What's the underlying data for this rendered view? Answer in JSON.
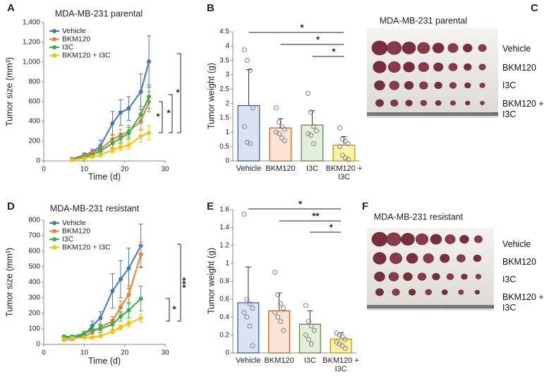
{
  "chart_data": [
    {
      "panel": "A",
      "type": "line",
      "title": "MDA-MB-231 parental",
      "xlabel": "Time (d)",
      "ylabel": "Tumor size (mm³)",
      "x": [
        7,
        10,
        12,
        14,
        17,
        19,
        21,
        24,
        26
      ],
      "series": [
        {
          "name": "Vehicle",
          "color": "#4472c4",
          "values": [
            20,
            60,
            90,
            150,
            380,
            490,
            530,
            700,
            1005
          ],
          "errors": [
            10,
            20,
            30,
            60,
            120,
            130,
            120,
            180,
            260
          ]
        },
        {
          "name": "BKM120",
          "color": "#ed7d31",
          "values": [
            20,
            50,
            80,
            120,
            220,
            260,
            300,
            400,
            600
          ],
          "errors": [
            5,
            15,
            20,
            30,
            50,
            60,
            60,
            80,
            100
          ]
        },
        {
          "name": "I3C",
          "color": "#2fb34a",
          "values": [
            15,
            40,
            60,
            100,
            180,
            230,
            280,
            470,
            650
          ],
          "errors": [
            5,
            10,
            15,
            25,
            50,
            50,
            60,
            80,
            120
          ]
        },
        {
          "name": "BKM120 + I3C",
          "color": "#ffc000",
          "values": [
            10,
            25,
            40,
            60,
            110,
            140,
            160,
            250,
            285
          ],
          "errors": [
            3,
            8,
            10,
            15,
            30,
            30,
            40,
            60,
            70
          ]
        }
      ],
      "xlim": [
        0,
        30
      ],
      "xticks": [
        0,
        10,
        20,
        30
      ],
      "ylim": [
        0,
        1400
      ],
      "yticks": [
        0,
        200,
        400,
        600,
        800,
        {
          "value": 1000,
          "label": "1,000"
        },
        {
          "value": 1200,
          "label": "1,200"
        },
        {
          "value": 1400,
          "label": "1,400"
        }
      ],
      "significance": [
        "*",
        "*",
        "*"
      ]
    },
    {
      "panel": "B",
      "type": "bar",
      "ylabel": "Tumor weight (g)",
      "categories": [
        "Vehicle",
        "BKM120",
        "I3C",
        "BKM120 + I3C"
      ],
      "values": [
        1.93,
        1.15,
        1.25,
        0.55
      ],
      "errors": [
        1.25,
        0.32,
        0.5,
        0.3
      ],
      "colors": [
        "#dae3f3",
        "#fbe3d5",
        "#e2f0d9",
        "#fff2a6"
      ],
      "edge_colors": [
        "#2f5597",
        "#c55a11",
        "#548235",
        "#bf9000"
      ],
      "points": [
        [
          3.87,
          3.5,
          3.15,
          1.85,
          1.2,
          0.65,
          0.6
        ],
        [
          1.85,
          1.35,
          1.2,
          1.1,
          1.0,
          0.95,
          0.8,
          0.7
        ],
        [
          2.35,
          1.7,
          1.2,
          1.05,
          0.95,
          0.9,
          0.6
        ],
        [
          1.15,
          0.75,
          0.7,
          0.6,
          0.5,
          0.2,
          0.1,
          0.05
        ]
      ],
      "ylim": [
        0,
        4.5
      ],
      "yticks": [
        0,
        0.5,
        1,
        1.5,
        2,
        2.5,
        3,
        3.5,
        4,
        4.5
      ],
      "significance": [
        "*",
        "*",
        "*"
      ]
    },
    {
      "panel": "D",
      "type": "line",
      "title": "MDA-MB-231 resistant",
      "xlabel": "Time (d)",
      "ylabel": "Tumor size (mm³)",
      "x": [
        5,
        7,
        10,
        12,
        14,
        17,
        19,
        21,
        24
      ],
      "series": [
        {
          "name": "Vehicle",
          "color": "#4472c4",
          "values": [
            45,
            40,
            60,
            120,
            170,
            345,
            420,
            490,
            635
          ],
          "errors": [
            10,
            10,
            15,
            30,
            40,
            110,
            120,
            130,
            140
          ]
        },
        {
          "name": "BKM120",
          "color": "#ed7d31",
          "values": [
            30,
            35,
            50,
            80,
            110,
            150,
            240,
            320,
            580
          ],
          "errors": [
            5,
            8,
            10,
            15,
            20,
            30,
            40,
            60,
            80
          ]
        },
        {
          "name": "I3C",
          "color": "#2fb34a",
          "values": [
            50,
            50,
            70,
            95,
            100,
            130,
            180,
            220,
            295
          ],
          "errors": [
            10,
            10,
            15,
            20,
            25,
            30,
            30,
            50,
            80
          ]
        },
        {
          "name": "BKM120 + I3C",
          "color": "#ffc000",
          "values": [
            35,
            40,
            45,
            45,
            55,
            85,
            110,
            135,
            170
          ],
          "errors": [
            5,
            8,
            8,
            8,
            10,
            15,
            15,
            20,
            25
          ]
        }
      ],
      "xlim": [
        0,
        30
      ],
      "xticks": [
        0,
        10,
        20,
        30
      ],
      "ylim": [
        0,
        800
      ],
      "yticks": [
        0,
        100,
        200,
        300,
        400,
        500,
        600,
        700,
        800
      ],
      "significance": [
        "*",
        "***"
      ]
    },
    {
      "panel": "E",
      "type": "bar",
      "ylabel": "Tumor weight (g)",
      "categories": [
        "Vehicle",
        "BKM120",
        "I3C",
        "BKM120 + I3C"
      ],
      "values": [
        0.56,
        0.47,
        0.32,
        0.155
      ],
      "errors": [
        0.4,
        0.2,
        0.15,
        0.07
      ],
      "colors": [
        "#dae3f3",
        "#fbe3d5",
        "#e2f0d9",
        "#fff2a6"
      ],
      "edge_colors": [
        "#2f5597",
        "#c55a11",
        "#548235",
        "#bf9000"
      ],
      "points": [
        [
          1.55,
          0.6,
          0.55,
          0.5,
          0.45,
          0.4,
          0.3,
          0.08
        ],
        [
          0.9,
          0.65,
          0.55,
          0.5,
          0.45,
          0.4,
          0.35,
          0.25
        ],
        [
          0.53,
          0.35,
          0.3,
          0.25,
          0.2,
          0.15,
          0.1
        ],
        [
          0.22,
          0.2,
          0.18,
          0.15,
          0.12,
          0.1,
          0.08,
          0.05
        ]
      ],
      "ylim": [
        0,
        1.6
      ],
      "yticks": [
        0,
        0.2,
        0.4,
        0.6,
        0.8,
        1,
        1.2,
        1.4,
        1.6
      ],
      "significance": [
        "*",
        "**",
        "*"
      ]
    }
  ],
  "photo_panels": [
    {
      "panel": "C",
      "title": "MDA-MB-231 parental",
      "row_labels": [
        "Vehicle",
        "BKM120",
        "I3C",
        "BKM120 + I3C"
      ]
    },
    {
      "panel": "F",
      "title": "MDA-MB-231 resistant",
      "row_labels": [
        "Vehicle",
        "BKM120",
        "I3C",
        "BKM120 + I3C"
      ]
    }
  ]
}
